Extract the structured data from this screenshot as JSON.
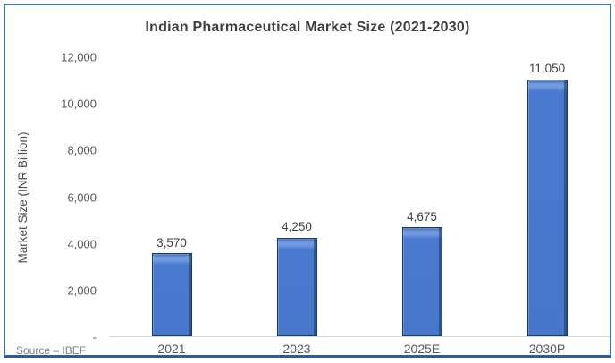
{
  "chart_data": {
    "type": "bar",
    "title": "Indian Pharmaceutical Market Size (2021-2030)",
    "ylabel": "Market Size (INR Billion)",
    "xlabel": "",
    "categories": [
      "2021",
      "2023",
      "2025E",
      "2030P"
    ],
    "values": [
      3570,
      4250,
      4675,
      11050
    ],
    "value_labels": [
      "3,570",
      "4,250",
      "4,675",
      "11,050"
    ],
    "ylim": [
      0,
      12000
    ],
    "yticks": [
      {
        "value": 12000,
        "label": "12,000"
      },
      {
        "value": 10000,
        "label": "10,000"
      },
      {
        "value": 8000,
        "label": "8,000"
      },
      {
        "value": 6000,
        "label": "6,000"
      },
      {
        "value": 4000,
        "label": "4,000"
      },
      {
        "value": 2000,
        "label": "2,000"
      },
      {
        "value": 0,
        "label": "-"
      }
    ],
    "grid": false,
    "legend": false,
    "source": "Source – IBEF",
    "colors": {
      "bar_fill": "#4a7ad0",
      "bar_highlight": "#7399de",
      "bar_edge": "#1b3a66",
      "frame_border": "#4a6fa5",
      "bottom_rule": "#2e5aa0",
      "axis_line": "#d9d9d9",
      "title_text": "#3f3f3f",
      "tick_text": "#595959"
    }
  }
}
